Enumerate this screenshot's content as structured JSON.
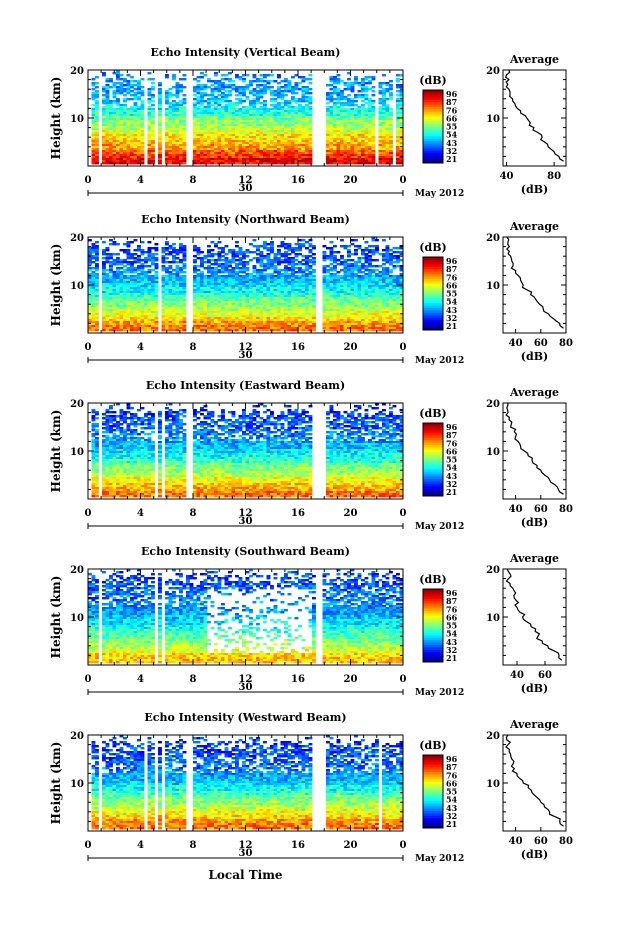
{
  "figure": {
    "xlabel": "Local Time",
    "date_label": "30",
    "month_label": "May 2012"
  },
  "colorbar": {
    "unit": "(dB)",
    "ticks": [
      "96",
      "87",
      "76",
      "66",
      "55",
      "54",
      "43",
      "32",
      "21"
    ],
    "scale_min": 21,
    "scale_max": 96
  },
  "chart_data": [
    {
      "type": "heatmap",
      "title": "Echo Intensity (Vertical Beam)",
      "ylabel": "Height (km)",
      "xlim": [
        0,
        24
      ],
      "ylim": [
        0,
        20
      ],
      "xticks": [
        "0",
        "4",
        "8",
        "12",
        "16",
        "20",
        "0"
      ],
      "yticks": [
        "10",
        "20"
      ],
      "gap_hours": [
        [
          0.1,
          0.3
        ],
        [
          0.8,
          1.0
        ],
        [
          1.5,
          1.7
        ],
        [
          4.2,
          4.5
        ],
        [
          5.0,
          5.2
        ],
        [
          5.6,
          5.9
        ],
        [
          7.5,
          7.9
        ],
        [
          17.2,
          18.0
        ],
        [
          21.9,
          22.2
        ],
        [
          23.2,
          23.4
        ]
      ],
      "profile": {
        "title": "Average",
        "xlabel": "(dB)",
        "xticks": [
          "40",
          "80"
        ],
        "xlim": [
          37,
          90
        ],
        "height_km": [
          1,
          2,
          3,
          4,
          5,
          6,
          7,
          8,
          9,
          10,
          11,
          12,
          13,
          14,
          15,
          16,
          17,
          18,
          19,
          20
        ],
        "values_db": [
          88,
          84,
          80,
          75,
          72,
          70,
          66,
          63,
          60,
          57,
          52,
          49,
          47,
          45,
          43,
          42,
          41,
          42,
          40,
          42
        ]
      }
    },
    {
      "type": "heatmap",
      "title": "Echo Intensity (Northward Beam)",
      "ylabel": "Height (km)",
      "xlim": [
        0,
        24
      ],
      "ylim": [
        0,
        20
      ],
      "xticks": [
        "0",
        "4",
        "8",
        "12",
        "16",
        "20",
        "0"
      ],
      "yticks": [
        "10",
        "20"
      ],
      "gap_hours": [
        [
          0.8,
          1.0
        ],
        [
          4.7,
          4.9
        ],
        [
          5.3,
          5.6
        ],
        [
          7.6,
          7.9
        ],
        [
          17.3,
          17.9
        ]
      ],
      "profile": {
        "title": "Average",
        "xlabel": "(dB)",
        "xticks": [
          "40",
          "60",
          "80"
        ],
        "xlim": [
          30,
          80
        ],
        "height_km": [
          1,
          2,
          3,
          4,
          5,
          6,
          7,
          8,
          9,
          10,
          11,
          12,
          13,
          14,
          15,
          16,
          17,
          18,
          19,
          20
        ],
        "values_db": [
          78,
          75,
          70,
          66,
          62,
          59,
          56,
          52,
          49,
          46,
          44,
          42,
          40,
          38,
          37,
          36,
          35,
          35,
          34,
          33
        ]
      }
    },
    {
      "type": "heatmap",
      "title": "Echo Intensity (Eastward Beam)",
      "ylabel": "Height (km)",
      "xlim": [
        0,
        24
      ],
      "ylim": [
        0,
        20
      ],
      "xticks": [
        "0",
        "4",
        "8",
        "12",
        "16",
        "20",
        "0"
      ],
      "yticks": [
        "10",
        "20"
      ],
      "gap_hours": [
        [
          0.1,
          0.3
        ],
        [
          0.8,
          1.0
        ],
        [
          1.5,
          1.7
        ],
        [
          4.4,
          4.6
        ],
        [
          5.0,
          5.2
        ],
        [
          5.6,
          5.9
        ],
        [
          7.5,
          7.9
        ],
        [
          17.2,
          18.0
        ]
      ],
      "profile": {
        "title": "Average",
        "xlabel": "(dB)",
        "xticks": [
          "40",
          "60",
          "80"
        ],
        "xlim": [
          30,
          80
        ],
        "height_km": [
          1,
          2,
          3,
          4,
          5,
          6,
          7,
          8,
          9,
          10,
          11,
          12,
          13,
          14,
          15,
          16,
          17,
          18,
          19,
          20
        ],
        "values_db": [
          78,
          74,
          71,
          67,
          63,
          60,
          57,
          53,
          50,
          47,
          44,
          42,
          40,
          39,
          36,
          37,
          35,
          34,
          33,
          34
        ]
      }
    },
    {
      "type": "heatmap",
      "title": "Echo Intensity (Southward Beam)",
      "ylabel": "Height (km)",
      "xlim": [
        0,
        24
      ],
      "ylim": [
        0,
        20
      ],
      "xticks": [
        "0",
        "4",
        "8",
        "12",
        "16",
        "20",
        "0"
      ],
      "yticks": [
        "10",
        "20"
      ],
      "gap_hours": [
        [
          0.8,
          1.0
        ],
        [
          4.4,
          4.6
        ],
        [
          5.2,
          5.4
        ],
        [
          5.7,
          5.9
        ],
        [
          17.3,
          17.9
        ]
      ],
      "profile": {
        "title": "Average",
        "xlabel": "(dB)",
        "xticks": [
          "40",
          "60"
        ],
        "xlim": [
          30,
          75
        ],
        "height_km": [
          1,
          2,
          3,
          4,
          5,
          6,
          7,
          8,
          9,
          10,
          11,
          12,
          13,
          14,
          15,
          16,
          17,
          18,
          19,
          20
        ],
        "values_db": [
          72,
          70,
          66,
          62,
          58,
          55,
          53,
          50,
          47,
          44,
          42,
          40,
          41,
          38,
          39,
          37,
          35,
          34,
          35,
          33
        ]
      }
    },
    {
      "type": "heatmap",
      "title": "Echo Intensity (Westward Beam)",
      "ylabel": "Height (km)",
      "xlim": [
        0,
        24
      ],
      "ylim": [
        0,
        20
      ],
      "xticks": [
        "0",
        "4",
        "8",
        "12",
        "16",
        "20",
        "0"
      ],
      "yticks": [
        "10",
        "20"
      ],
      "gap_hours": [
        [
          0.1,
          0.3
        ],
        [
          0.8,
          1.0
        ],
        [
          1.5,
          1.7
        ],
        [
          4.3,
          4.5
        ],
        [
          5.0,
          5.2
        ],
        [
          5.6,
          5.9
        ],
        [
          7.5,
          7.9
        ],
        [
          17.2,
          18.0
        ],
        [
          22.2,
          22.4
        ]
      ],
      "profile": {
        "title": "Average",
        "xlabel": "(dB)",
        "xticks": [
          "40",
          "60",
          "80"
        ],
        "xlim": [
          30,
          80
        ],
        "height_km": [
          1,
          2,
          3,
          4,
          5,
          6,
          7,
          8,
          9,
          10,
          11,
          12,
          13,
          14,
          15,
          16,
          17,
          18,
          19,
          20
        ],
        "values_db": [
          78,
          75,
          71,
          67,
          63,
          60,
          57,
          53,
          50,
          46,
          43,
          41,
          39,
          38,
          37,
          36,
          35,
          34,
          33,
          34
        ]
      }
    }
  ]
}
